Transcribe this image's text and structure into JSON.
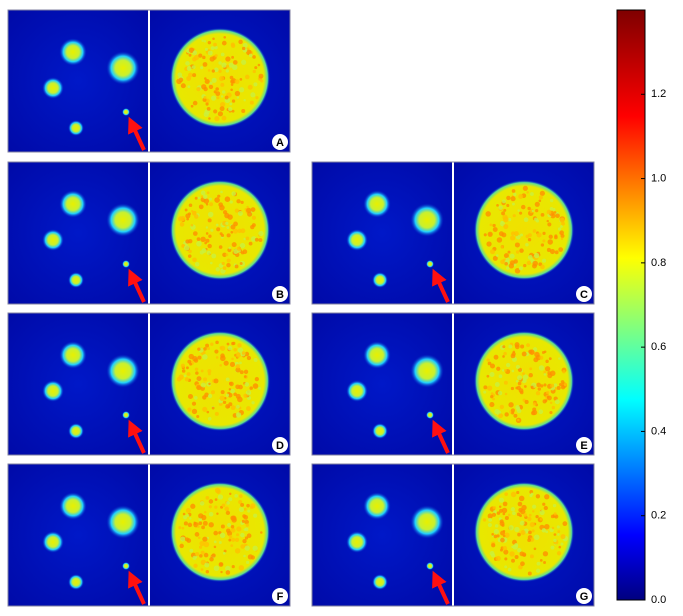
{
  "panels": [
    {
      "label": "A"
    },
    {
      "label": "B"
    },
    {
      "label": "C"
    },
    {
      "label": "D"
    },
    {
      "label": "E"
    },
    {
      "label": "F"
    },
    {
      "label": "G"
    }
  ],
  "colorbar": {
    "lim": [
      0,
      1.4
    ],
    "ticks": [
      {
        "value": 0,
        "label": "0.0"
      },
      0.2,
      0.4,
      0.6,
      0.8,
      {
        "value": 1,
        "label": "1.0"
      },
      1.2
    ]
  }
}
